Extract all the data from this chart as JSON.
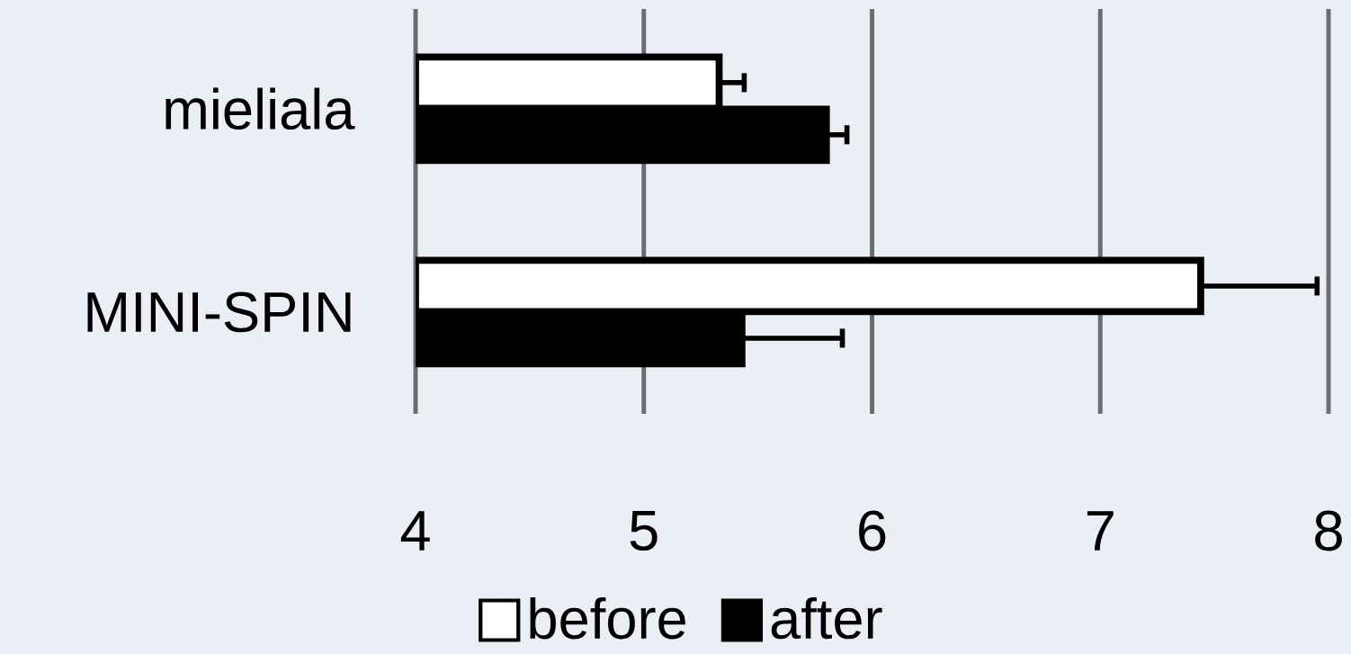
{
  "chart_data": {
    "type": "bar",
    "orientation": "horizontal",
    "categories": [
      "mieliala",
      "MINI-SPIN"
    ],
    "series": [
      {
        "name": "before",
        "color": "#ffffff",
        "values": [
          5.33,
          7.44
        ],
        "errors": [
          [
            5.33,
            5.44
          ],
          [
            7.44,
            7.95
          ]
        ]
      },
      {
        "name": "after",
        "color": "#000000",
        "values": [
          5.8,
          5.43
        ],
        "errors": [
          [
            5.8,
            5.89
          ],
          [
            5.43,
            5.87
          ]
        ]
      }
    ],
    "xlim": [
      4,
      8
    ],
    "xticks": [
      4,
      5,
      6,
      7,
      8
    ],
    "grid": "x",
    "legend": "bottom"
  }
}
